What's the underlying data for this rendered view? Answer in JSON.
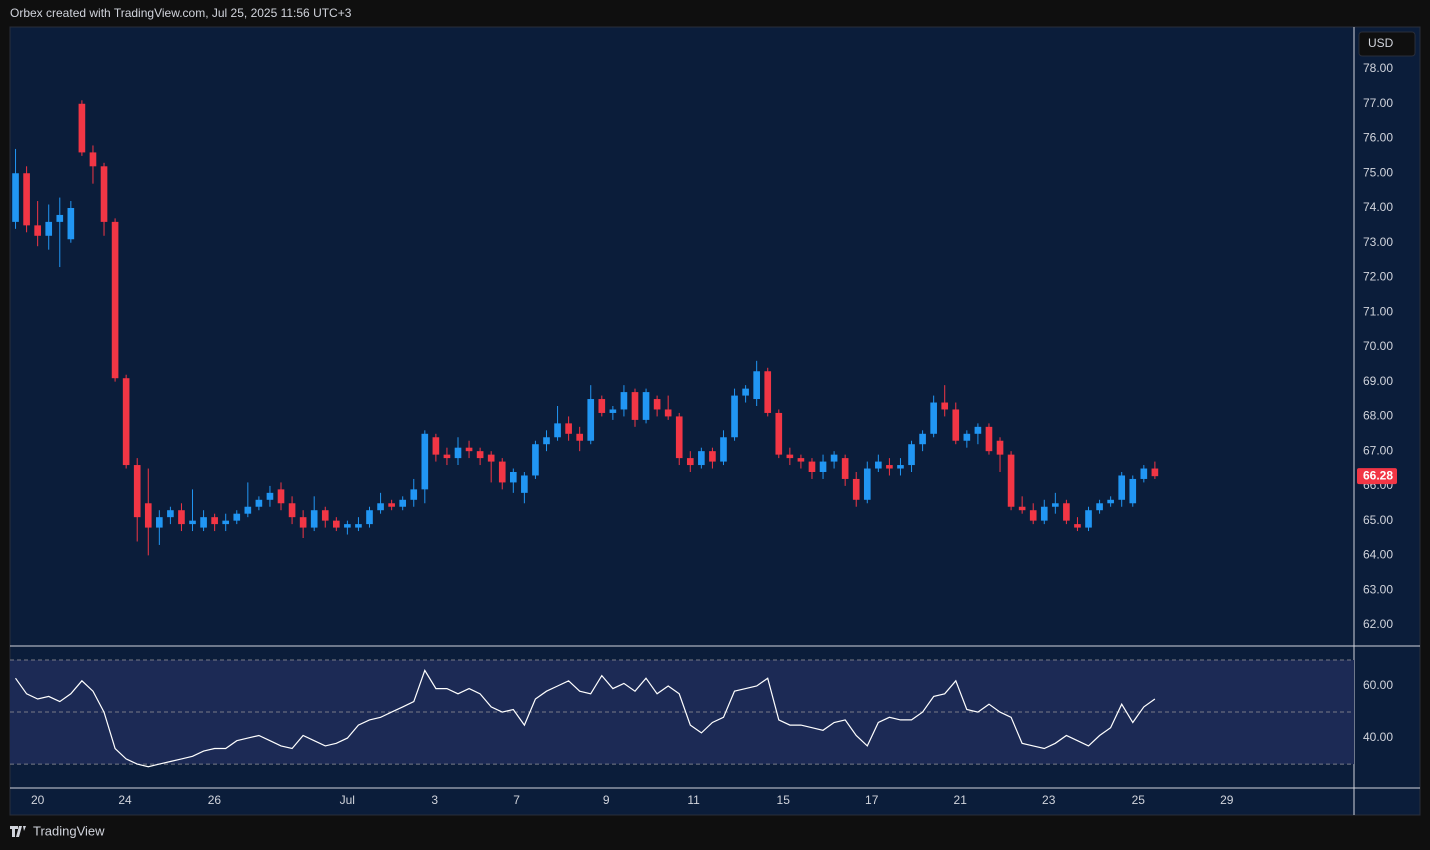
{
  "header": {
    "title": "Orbex created with TradingView.com, Jul 25, 2025 11:56 UTC+3"
  },
  "footer": {
    "brand": "TradingView"
  },
  "chart_data": [
    {
      "type": "candlestick",
      "currency": "USD",
      "up_color": "#2196f3",
      "down_color": "#f23645",
      "last_price": 66.28,
      "xlim": [
        -0.5,
        121
      ],
      "xticks": [
        {
          "value": 2.0,
          "label": "20"
        },
        {
          "value": 9.9,
          "label": "24"
        },
        {
          "value": 17.98,
          "label": "26"
        },
        {
          "value": 29.99,
          "label": "Jul"
        },
        {
          "value": 37.9,
          "label": "3"
        },
        {
          "value": 45.3,
          "label": "7"
        },
        {
          "value": 53.4,
          "label": "9"
        },
        {
          "value": 61.3,
          "label": "11"
        },
        {
          "value": 69.4,
          "label": "15"
        },
        {
          "value": 77.4,
          "label": "17"
        },
        {
          "value": 85.4,
          "label": "21"
        },
        {
          "value": 93.4,
          "label": "23"
        },
        {
          "value": 101.5,
          "label": "25"
        },
        {
          "value": 109.5,
          "label": "29"
        }
      ],
      "ylim": [
        61.42,
        79.21
      ],
      "yticks": [
        {
          "value": 62,
          "label": "62.00"
        },
        {
          "value": 63,
          "label": "63.00"
        },
        {
          "value": 64,
          "label": "64.00"
        },
        {
          "value": 65,
          "label": "65.00"
        },
        {
          "value": 66,
          "label": "66.00"
        },
        {
          "value": 67,
          "label": "67.00"
        },
        {
          "value": 68,
          "label": "68.00"
        },
        {
          "value": 69,
          "label": "69.00"
        },
        {
          "value": 70,
          "label": "70.00"
        },
        {
          "value": 71,
          "label": "71.00"
        },
        {
          "value": 72,
          "label": "72.00"
        },
        {
          "value": 73,
          "label": "73.00"
        },
        {
          "value": 74,
          "label": "74.00"
        },
        {
          "value": 75,
          "label": "75.00"
        },
        {
          "value": 76,
          "label": "76.00"
        },
        {
          "value": 77,
          "label": "77.00"
        },
        {
          "value": 78,
          "label": "78.00"
        }
      ],
      "ohlc": [
        [
          73.6,
          75.7,
          73.4,
          75.0
        ],
        [
          75.0,
          75.2,
          73.3,
          73.5
        ],
        [
          73.5,
          74.2,
          72.9,
          73.2
        ],
        [
          73.2,
          74.1,
          72.8,
          73.6
        ],
        [
          73.6,
          74.3,
          72.3,
          73.8
        ],
        [
          73.1,
          74.2,
          73.0,
          74.0
        ],
        [
          77.0,
          77.1,
          75.5,
          75.6
        ],
        [
          75.6,
          75.8,
          74.7,
          75.2
        ],
        [
          75.2,
          75.3,
          73.2,
          73.6
        ],
        [
          73.6,
          73.7,
          69.0,
          69.1
        ],
        [
          69.1,
          69.2,
          66.5,
          66.6
        ],
        [
          66.6,
          66.8,
          64.4,
          65.1
        ],
        [
          65.5,
          66.5,
          64.0,
          64.8
        ],
        [
          64.8,
          65.3,
          64.3,
          65.1
        ],
        [
          65.1,
          65.4,
          64.9,
          65.3
        ],
        [
          65.3,
          65.5,
          64.7,
          64.9
        ],
        [
          64.9,
          65.9,
          64.7,
          65.0
        ],
        [
          64.8,
          65.3,
          64.7,
          65.1
        ],
        [
          65.1,
          65.2,
          64.7,
          64.9
        ],
        [
          64.9,
          65.2,
          64.7,
          65.0
        ],
        [
          65.0,
          65.3,
          64.9,
          65.2
        ],
        [
          65.2,
          66.1,
          65.1,
          65.4
        ],
        [
          65.4,
          65.7,
          65.3,
          65.6
        ],
        [
          65.6,
          66.0,
          65.4,
          65.8
        ],
        [
          65.9,
          66.1,
          65.3,
          65.5
        ],
        [
          65.5,
          65.7,
          64.9,
          65.1
        ],
        [
          65.1,
          65.3,
          64.5,
          64.8
        ],
        [
          64.8,
          65.7,
          64.7,
          65.3
        ],
        [
          65.3,
          65.4,
          64.8,
          65.0
        ],
        [
          65.0,
          65.1,
          64.7,
          64.8
        ],
        [
          64.8,
          65.0,
          64.6,
          64.9
        ],
        [
          64.8,
          65.1,
          64.7,
          64.9
        ],
        [
          64.9,
          65.4,
          64.8,
          65.3
        ],
        [
          65.3,
          65.8,
          65.2,
          65.5
        ],
        [
          65.5,
          65.6,
          65.3,
          65.4
        ],
        [
          65.4,
          65.7,
          65.3,
          65.6
        ],
        [
          65.6,
          66.2,
          65.4,
          65.9
        ],
        [
          65.9,
          67.6,
          65.5,
          67.5
        ],
        [
          67.4,
          67.5,
          66.7,
          66.9
        ],
        [
          66.9,
          67.1,
          66.6,
          66.8
        ],
        [
          66.8,
          67.4,
          66.6,
          67.1
        ],
        [
          67.1,
          67.3,
          66.8,
          67.0
        ],
        [
          67.0,
          67.1,
          66.6,
          66.8
        ],
        [
          66.9,
          67.0,
          66.1,
          66.7
        ],
        [
          66.7,
          66.8,
          65.9,
          66.1
        ],
        [
          66.1,
          66.5,
          65.8,
          66.4
        ],
        [
          65.8,
          66.4,
          65.5,
          66.3
        ],
        [
          66.3,
          67.3,
          66.2,
          67.2
        ],
        [
          67.2,
          67.6,
          67.0,
          67.4
        ],
        [
          67.4,
          68.3,
          67.3,
          67.8
        ],
        [
          67.8,
          68.0,
          67.3,
          67.5
        ],
        [
          67.5,
          67.7,
          67.0,
          67.3
        ],
        [
          67.3,
          68.9,
          67.2,
          68.5
        ],
        [
          68.5,
          68.6,
          68.0,
          68.1
        ],
        [
          68.1,
          68.3,
          67.9,
          68.2
        ],
        [
          68.2,
          68.9,
          68.0,
          68.7
        ],
        [
          68.7,
          68.8,
          67.7,
          67.9
        ],
        [
          67.9,
          68.8,
          67.8,
          68.7
        ],
        [
          68.5,
          68.6,
          68.0,
          68.2
        ],
        [
          68.2,
          68.6,
          67.9,
          68.0
        ],
        [
          68.0,
          68.1,
          66.6,
          66.8
        ],
        [
          66.8,
          67.0,
          66.4,
          66.6
        ],
        [
          66.6,
          67.1,
          66.5,
          67.0
        ],
        [
          67.0,
          67.1,
          66.5,
          66.7
        ],
        [
          66.7,
          67.6,
          66.6,
          67.4
        ],
        [
          67.4,
          68.8,
          67.3,
          68.6
        ],
        [
          68.6,
          68.9,
          68.4,
          68.8
        ],
        [
          68.5,
          69.6,
          68.3,
          69.3
        ],
        [
          69.3,
          69.4,
          68.0,
          68.1
        ],
        [
          68.1,
          68.2,
          66.8,
          66.9
        ],
        [
          66.9,
          67.1,
          66.6,
          66.8
        ],
        [
          66.8,
          66.9,
          66.5,
          66.7
        ],
        [
          66.7,
          66.8,
          66.2,
          66.4
        ],
        [
          66.4,
          66.9,
          66.2,
          66.7
        ],
        [
          66.7,
          67.0,
          66.5,
          66.9
        ],
        [
          66.8,
          66.9,
          66.0,
          66.2
        ],
        [
          66.2,
          66.4,
          65.4,
          65.6
        ],
        [
          65.6,
          66.7,
          65.5,
          66.5
        ],
        [
          66.5,
          66.9,
          66.4,
          66.7
        ],
        [
          66.6,
          66.8,
          66.3,
          66.5
        ],
        [
          66.5,
          66.8,
          66.3,
          66.6
        ],
        [
          66.6,
          67.3,
          66.4,
          67.2
        ],
        [
          67.2,
          67.6,
          67.0,
          67.5
        ],
        [
          67.5,
          68.6,
          67.4,
          68.4
        ],
        [
          68.4,
          68.9,
          68.0,
          68.2
        ],
        [
          68.2,
          68.4,
          67.2,
          67.3
        ],
        [
          67.3,
          67.6,
          67.1,
          67.5
        ],
        [
          67.5,
          67.8,
          67.2,
          67.7
        ],
        [
          67.7,
          67.8,
          66.9,
          67.0
        ],
        [
          67.3,
          67.4,
          66.4,
          66.9
        ],
        [
          66.9,
          67.0,
          65.3,
          65.4
        ],
        [
          65.4,
          65.7,
          65.2,
          65.3
        ],
        [
          65.3,
          65.5,
          64.9,
          65.0
        ],
        [
          65.0,
          65.6,
          64.9,
          65.4
        ],
        [
          65.4,
          65.8,
          65.2,
          65.5
        ],
        [
          65.5,
          65.6,
          64.9,
          65.0
        ],
        [
          64.9,
          65.1,
          64.7,
          64.8
        ],
        [
          64.8,
          65.4,
          64.7,
          65.3
        ],
        [
          65.3,
          65.6,
          65.2,
          65.5
        ],
        [
          65.5,
          65.7,
          65.4,
          65.6
        ],
        [
          65.6,
          66.4,
          65.4,
          66.3
        ],
        [
          65.5,
          66.3,
          65.4,
          66.2
        ],
        [
          66.2,
          66.6,
          66.1,
          66.5
        ],
        [
          66.5,
          66.7,
          66.2,
          66.28
        ]
      ]
    },
    {
      "type": "line",
      "color": "#ffffff",
      "band_color": "#1c2a55",
      "levels": [
        30,
        50,
        70
      ],
      "ylim": [
        21.2,
        75
      ],
      "yticks": [
        {
          "value": 40,
          "label": "40.00"
        },
        {
          "value": 60,
          "label": "60.00"
        }
      ],
      "values": [
        63,
        57,
        55,
        56,
        54,
        57,
        62,
        58,
        50,
        36,
        32,
        30,
        29,
        30,
        31,
        32,
        33,
        35,
        36,
        36,
        39,
        40,
        41,
        39,
        37,
        36,
        41,
        39,
        37,
        38,
        40,
        45,
        47,
        48,
        50,
        52,
        54,
        66,
        59,
        59,
        57,
        59,
        57,
        52,
        50,
        51,
        45,
        55,
        58,
        60,
        62,
        58,
        57,
        64,
        59,
        61,
        58,
        63,
        57,
        60,
        57,
        45,
        42,
        46,
        48,
        58,
        59,
        60,
        63,
        47,
        45,
        45,
        44,
        43,
        46,
        47,
        41,
        37,
        46,
        48,
        47,
        47,
        50,
        56,
        57,
        62,
        51,
        50,
        53,
        50,
        48,
        38,
        37,
        36,
        38,
        41,
        39,
        37,
        41,
        44,
        53,
        46,
        52,
        55
      ]
    }
  ]
}
